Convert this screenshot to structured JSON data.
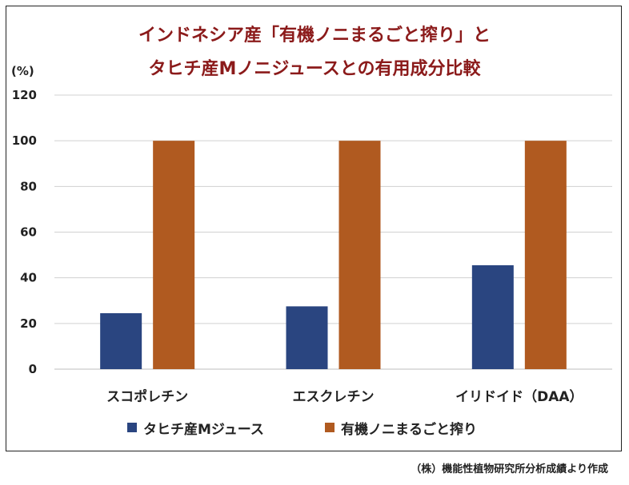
{
  "title_line1": "インドネシア産「有機ノニまるごと搾り」と",
  "title_line2": "タヒチ産Mノニジュースとの有用成分比較",
  "source_note": "（株）機能性植物研究所分析成績より作成",
  "colors": {
    "title": "#8b1a1a",
    "series1": "#2a4580",
    "series2": "#b05a20",
    "grid": "#d0d0d0"
  },
  "chart_data": {
    "type": "bar",
    "title": "インドネシア産「有機ノニまるごと搾り」と タヒチ産Mノニジュースとの有用成分比較",
    "ylabel": "(%)",
    "xlabel": "",
    "ylim": [
      0,
      120
    ],
    "yticks": [
      0,
      20,
      40,
      60,
      80,
      100,
      120
    ],
    "categories": [
      "スコポレチン",
      "エスクレチン",
      "イリドイド（DAA）"
    ],
    "series": [
      {
        "name": "タヒチ産Mジュース",
        "color": "#2a4580",
        "values": [
          24.5,
          27.5,
          45.5
        ]
      },
      {
        "name": "有機ノニまるごと搾り",
        "color": "#b05a20",
        "values": [
          100,
          100,
          100
        ]
      }
    ],
    "legend_position": "bottom",
    "grid": true
  }
}
